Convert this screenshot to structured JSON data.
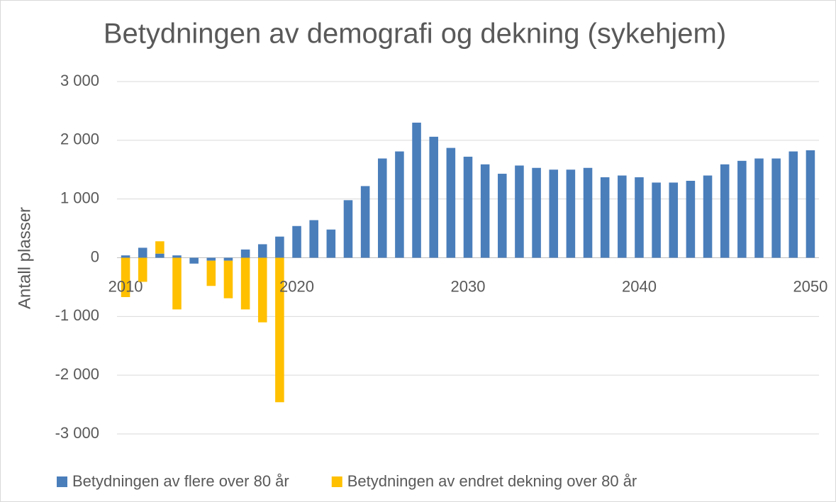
{
  "chart_data": {
    "type": "stacked_bar",
    "title": "Betydningen av demografi og dekning (sykehjem)",
    "y_label": "Antall plasser",
    "categories": [
      "2010",
      null,
      null,
      null,
      null,
      null,
      null,
      null,
      null,
      null,
      "2020",
      null,
      null,
      null,
      null,
      null,
      null,
      null,
      null,
      null,
      "2030",
      null,
      null,
      null,
      null,
      null,
      null,
      null,
      null,
      null,
      "2040",
      null,
      null,
      null,
      null,
      null,
      null,
      null,
      null,
      null,
      "2050"
    ],
    "series": [
      {
        "name": "Betydningen av flere over 80 år",
        "color": "#4a7ebb",
        "values": [
          40,
          170,
          70,
          40,
          -100,
          -50,
          -50,
          140,
          230,
          360,
          540,
          640,
          480,
          980,
          1220,
          1690,
          1810,
          2300,
          2060,
          1870,
          1720,
          1590,
          1430,
          1570,
          1530,
          1500,
          1500,
          1530,
          1370,
          1400,
          1370,
          1280,
          1280,
          1310,
          1400,
          1590,
          1650,
          1690,
          1690,
          1810,
          1830
        ]
      },
      {
        "name": "Betydningen av endret dekning over 80 år",
        "color": "#ffc000",
        "values": [
          -670,
          -410,
          210,
          -880,
          0,
          -430,
          -640,
          -880,
          -1100,
          -2460,
          0,
          0,
          0,
          0,
          0,
          0,
          0,
          0,
          0,
          0,
          0,
          0,
          0,
          0,
          0,
          0,
          0,
          0,
          0,
          0,
          0,
          0,
          0,
          0,
          0,
          0,
          0,
          0,
          0,
          0,
          0
        ]
      }
    ],
    "ylim": [
      -3000,
      3000
    ],
    "yticks": [
      {
        "value": -3000,
        "label": "-3 000"
      },
      {
        "value": -2000,
        "label": "-2 000"
      },
      {
        "value": -1000,
        "label": "-1 000"
      },
      0,
      {
        "value": 1000,
        "label": "1 000"
      },
      {
        "value": 2000,
        "label": "2 000"
      },
      {
        "value": 3000,
        "label": "3 000"
      }
    ],
    "grid": true,
    "legend": "bottom"
  }
}
